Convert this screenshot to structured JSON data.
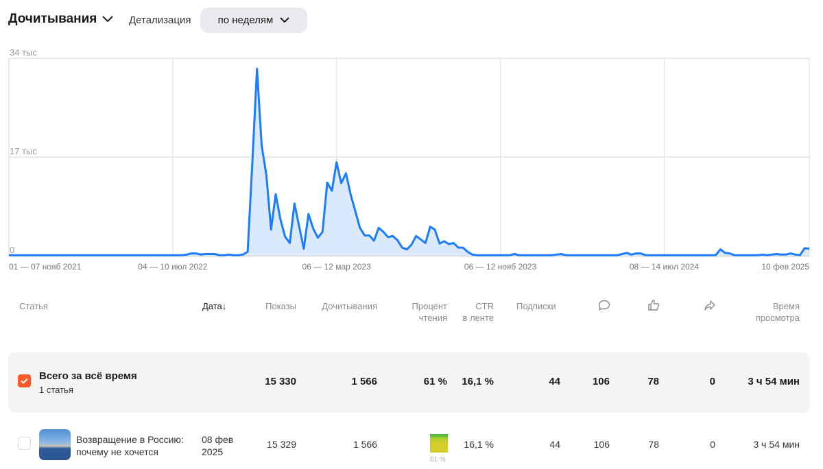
{
  "header": {
    "metric_label": "Дочитывания",
    "detail_label": "Детализация",
    "period_value": "по неделям"
  },
  "chart_data": {
    "type": "area",
    "title": "Дочитывания",
    "xlabel": "",
    "ylabel": "",
    "y_unit": "тыс",
    "ylim": [
      0,
      34
    ],
    "y_ticks": [
      {
        "value": 34,
        "label": "34 тыс"
      },
      {
        "value": 17,
        "label": "17 тыс"
      },
      {
        "value": 0,
        "label": "0"
      }
    ],
    "x_ticks": [
      {
        "index": 0,
        "label": "01 — 07 нояб 2021"
      },
      {
        "index": 35,
        "label": "04 — 10 июл 2022"
      },
      {
        "index": 70,
        "label": "06 — 12 мар 2023"
      },
      {
        "index": 105,
        "label": "06 — 12 нояб 2023"
      },
      {
        "index": 140,
        "label": "08 — 14 июл 2024"
      },
      {
        "index": 171,
        "label": "10 фев 2025"
      }
    ],
    "grid": true,
    "color": "#1a7cff",
    "values": [
      0.1,
      0.1,
      0.1,
      0.1,
      0.1,
      0.1,
      0.1,
      0.1,
      0.1,
      0.1,
      0.1,
      0.1,
      0.1,
      0.1,
      0.1,
      0.1,
      0.1,
      0.1,
      0.1,
      0.1,
      0.1,
      0.1,
      0.1,
      0.1,
      0.1,
      0.1,
      0.1,
      0.1,
      0.1,
      0.1,
      0.1,
      0.1,
      0.1,
      0.1,
      0.1,
      0.1,
      0.1,
      0.1,
      0.2,
      0.4,
      0.4,
      0.2,
      0.3,
      0.3,
      0.3,
      0.1,
      0.1,
      0.2,
      0.1,
      0.1,
      0.2,
      0.7,
      16.0,
      32.2,
      19.0,
      13.9,
      4.5,
      10.6,
      6.3,
      3.3,
      2.2,
      9.0,
      5.1,
      1.2,
      7.2,
      4.7,
      3.1,
      4.1,
      12.6,
      11.2,
      16.1,
      12.5,
      14.2,
      10.6,
      7.7,
      4.8,
      3.5,
      3.5,
      2.6,
      4.8,
      4.1,
      3.2,
      3.4,
      2.7,
      1.4,
      1.1,
      1.9,
      3.4,
      2.8,
      2.2,
      5.0,
      4.5,
      2.1,
      2.5,
      2.0,
      2.2,
      1.4,
      1.4,
      0.7,
      0.2,
      0.1,
      0.1,
      0.1,
      0.1,
      0.1,
      0.1,
      0.1,
      0.1,
      0.3,
      0.1,
      0.1,
      0.1,
      0.1,
      0.1,
      0.1,
      0.1,
      0.1,
      0.2,
      0.3,
      0.1,
      0.1,
      0.1,
      0.1,
      0.1,
      0.1,
      0.1,
      0.1,
      0.1,
      0.1,
      0.1,
      0.1,
      0.3,
      0.5,
      0.2,
      0.4,
      0.4,
      0.1,
      0.1,
      0.1,
      0.1,
      0.1,
      0.1,
      0.1,
      0.1,
      0.1,
      0.1,
      0.1,
      0.1,
      0.1,
      0.1,
      0.1,
      0.1,
      1.1,
      0.5,
      0.4,
      0.1,
      0.1,
      0.1,
      0.1,
      0.1,
      0.1,
      0.2,
      0.1,
      0.2,
      0.3,
      0.2,
      0.2,
      0.4,
      0.2,
      0.1,
      1.3,
      1.2
    ]
  },
  "table": {
    "headers": {
      "article": "Статья",
      "date": "Дата",
      "date_sort": "↓",
      "views": "Показы",
      "reads": "Дочитывания",
      "pct1": "Процент",
      "pct2": "чтения",
      "ctr1": "CTR",
      "ctr2": "в ленте",
      "subs": "Подписки",
      "time1": "Время",
      "time2": "просмотра"
    },
    "summary": {
      "title": "Всего за всё время",
      "subtitle": "1 статья",
      "views": "15 330",
      "reads": "1 566",
      "pct": "61 %",
      "ctr": "16,1 %",
      "subs": "44",
      "comments": "106",
      "likes": "78",
      "shares": "0",
      "time": "3 ч 54 мин",
      "checked": true
    },
    "rows": [
      {
        "title1": "Возвращение в Россию:",
        "title2": "почему не хочется",
        "date1": "08 фев",
        "date2": "2025",
        "views": "15 329",
        "reads": "1 566",
        "pct": "61 %",
        "pct_value": 61,
        "ctr": "16,1 %",
        "subs": "44",
        "comments": "106",
        "likes": "78",
        "shares": "0",
        "time": "3 ч 54 мин"
      }
    ]
  }
}
